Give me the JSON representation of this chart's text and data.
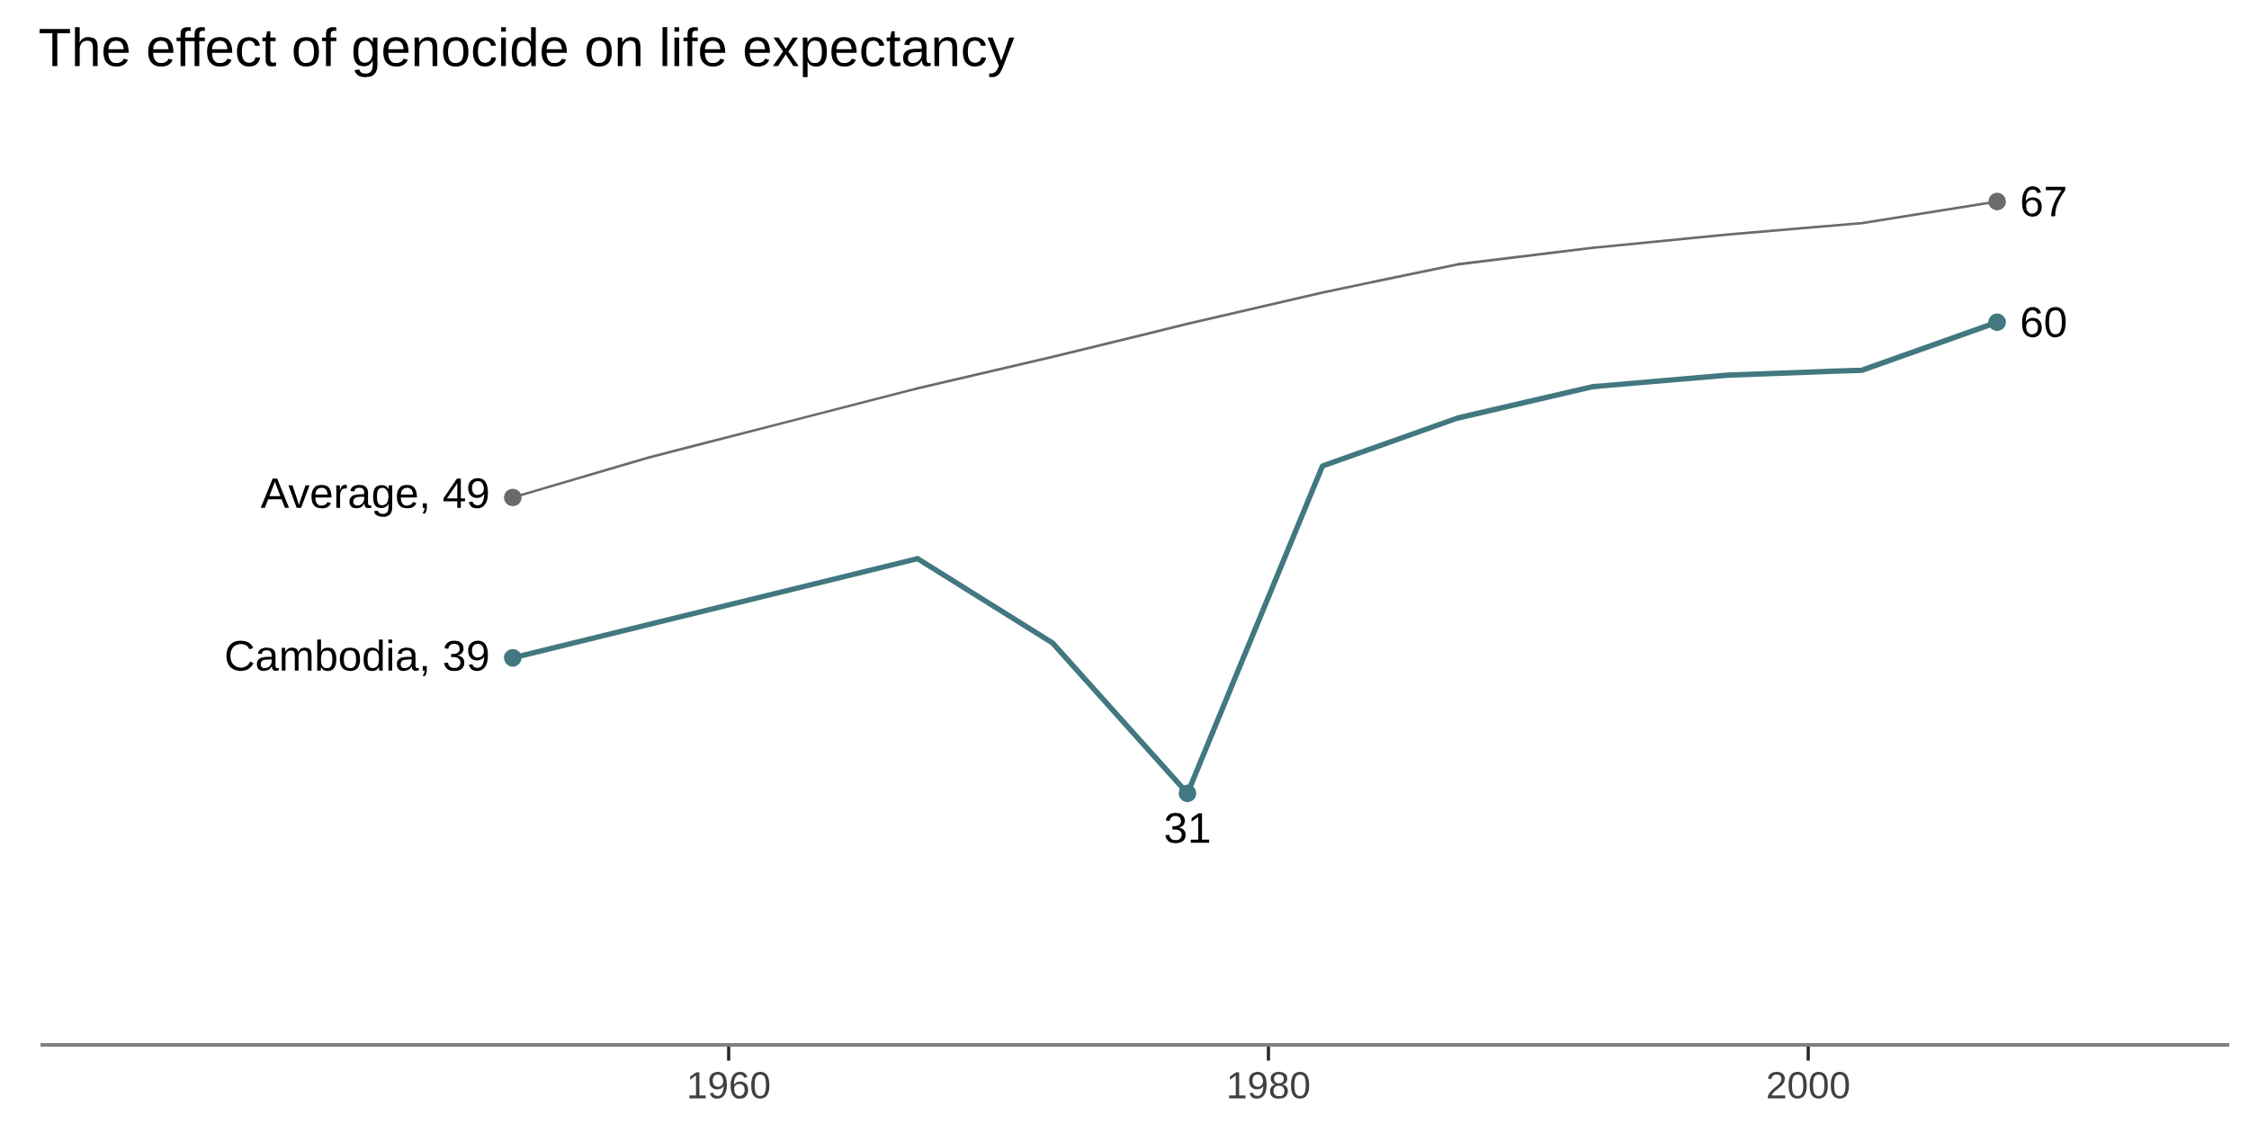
{
  "chart_data": {
    "type": "line",
    "title": "The effect of genocide on life expectancy",
    "x": [
      1952,
      1957,
      1962,
      1967,
      1972,
      1977,
      1982,
      1987,
      1992,
      1997,
      2002,
      2007
    ],
    "xlim": [
      1934.5,
      2015.6
    ],
    "xticks": [
      1960,
      1980,
      2000
    ],
    "grid": false,
    "tick_labels": "x",
    "series": [
      {
        "color": "#6b6b6b",
        "values": [
          49.1,
          51.5,
          53.6,
          55.7,
          57.6,
          59.6,
          61.5,
          63.2,
          64.2,
          65.0,
          65.7,
          67.0
        ],
        "value_labels": [
          "Average, 49",
          null,
          null,
          null,
          null,
          null,
          null,
          null,
          null,
          null,
          null,
          "67"
        ]
      },
      {
        "color": "#42787f",
        "values": [
          39.4,
          41.4,
          43.4,
          45.4,
          40.3,
          31.2,
          51.0,
          53.9,
          55.8,
          56.5,
          56.8,
          59.7
        ],
        "value_labels": [
          "Cambodia, 39",
          null,
          null,
          null,
          null,
          "31",
          null,
          null,
          null,
          null,
          null,
          "60"
        ]
      }
    ]
  }
}
